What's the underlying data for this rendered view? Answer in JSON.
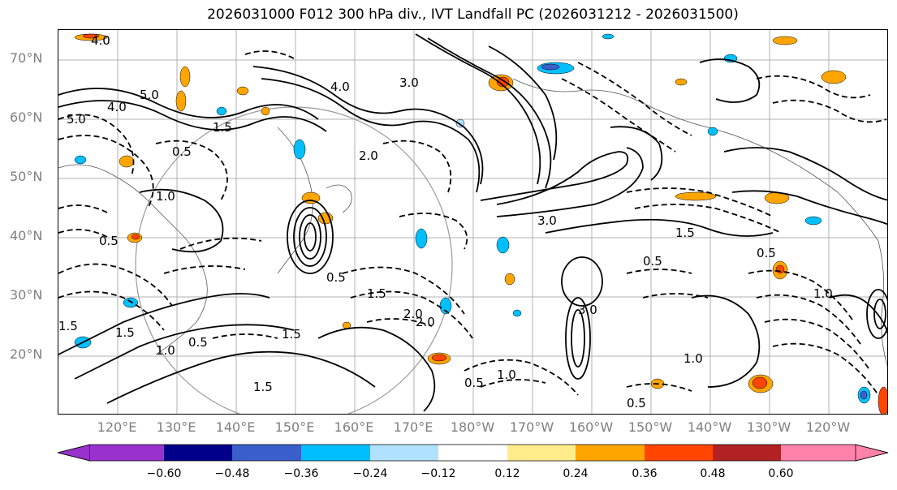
{
  "title": "2026031000 F012 300 hPa div., IVT Landfall PC (2026031212 - 2026031500)",
  "lat_labels": [
    "70°N",
    "60°N",
    "50°N",
    "40°N",
    "30°N",
    "20°N"
  ],
  "lon_labels": [
    "120°E",
    "130°E",
    "140°E",
    "150°E",
    "160°E",
    "170°E",
    "180°W",
    "170°W",
    "160°W",
    "150°W",
    "140°W",
    "130°W",
    "120°W"
  ],
  "contour_labels": [
    "4.0",
    "5.0",
    "3.0",
    "4.0",
    "5.0",
    "4.0",
    "1.5",
    "0.5",
    "1.0",
    "3.0",
    "2.0",
    "0.5",
    "1.5",
    "3.0",
    "1.5",
    "0.5",
    "1.5",
    "2.0",
    "1.5",
    "0.5",
    "1.0",
    "0.5",
    "1.5",
    "1.0",
    "0.5",
    "1.5",
    "2.0",
    "1.0",
    "0.5",
    "1.0",
    "0.5"
  ],
  "colorbar": {
    "ticks": [
      "−0.60",
      "−0.48",
      "−0.36",
      "−0.24",
      "−0.12",
      "0.12",
      "0.24",
      "0.36",
      "0.48",
      "0.60"
    ],
    "colors": [
      "#9932cc",
      "#00008b",
      "#3a5fcd",
      "#00bfff",
      "#b0e2ff",
      "#ffffff",
      "#ffec8b",
      "#ffa500",
      "#ff4500",
      "#b22222",
      "#ff82ab"
    ]
  },
  "fill_colors": {
    "neg_strong": "#3a5fcd",
    "neg_mid": "#00bfff",
    "neg_weak": "#b0e2ff",
    "pos_weak": "#ffec8b",
    "pos_mid": "#ffa500",
    "pos_strong": "#ff4500",
    "pos_max": "#b22222"
  }
}
